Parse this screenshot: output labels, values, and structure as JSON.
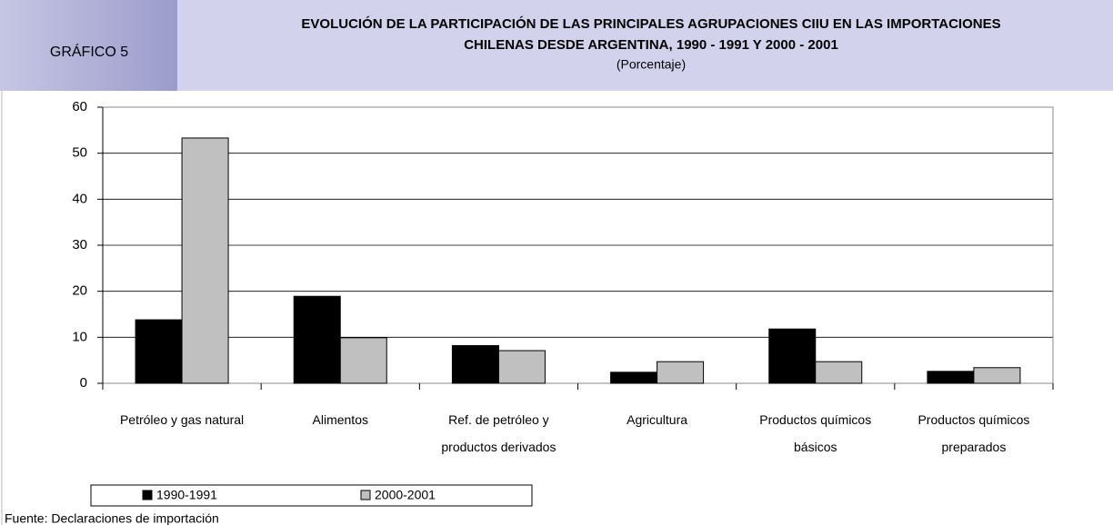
{
  "header": {
    "label": "GRÁFICO 5"
  },
  "chart_data": {
    "type": "bar",
    "title": "EVOLUCIÓN DE LA PARTICIPACIÓN DE LAS PRINCIPALES AGRUPACIONES CIIU EN LAS IMPORTACIONES",
    "title_line2": "CHILENAS DESDE ARGENTINA, 1990 - 1991 Y 2000 - 2001",
    "subtitle": "(Porcentaje)",
    "categories": [
      "Petróleo y gas natural",
      "Alimentos",
      "Ref. de petróleo y productos derivados",
      "Agricultura",
      "Productos químicos básicos",
      "Productos químicos preparados"
    ],
    "series": [
      {
        "name": "1990-1991",
        "color": "#000000",
        "values": [
          13.8,
          18.9,
          8.2,
          2.4,
          11.8,
          2.6
        ]
      },
      {
        "name": "2000-2001",
        "color": "#c0c0c0",
        "values": [
          53.3,
          9.9,
          7.1,
          4.7,
          4.7,
          3.4
        ]
      }
    ],
    "ylim": [
      0,
      60
    ],
    "yticks": [
      0,
      10,
      20,
      30,
      40,
      50,
      60
    ],
    "grid": true,
    "source": "Fuente: Declaraciones de importación"
  }
}
